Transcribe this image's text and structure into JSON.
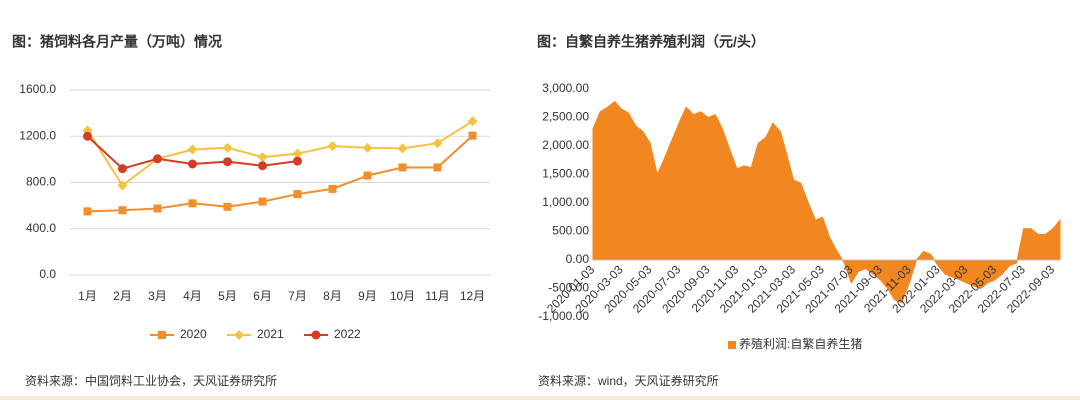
{
  "chart_data": [
    {
      "type": "line",
      "title": "图：猪饲料各月产量（万吨）情况",
      "source": "资料来源：中国饲料工业协会，天风证券研究所",
      "categories": [
        "1月",
        "2月",
        "3月",
        "4月",
        "5月",
        "6月",
        "7月",
        "8月",
        "9月",
        "10月",
        "11月",
        "12月"
      ],
      "series": [
        {
          "name": "2020",
          "color": "#f28e2b",
          "marker": "square",
          "values": [
            550,
            560,
            575,
            620,
            590,
            635,
            700,
            745,
            860,
            930,
            930,
            1205
          ]
        },
        {
          "name": "2021",
          "color": "#f5c242",
          "marker": "diamond",
          "values": [
            1250,
            775,
            1005,
            1085,
            1100,
            1020,
            1050,
            1115,
            1100,
            1095,
            1140,
            1330
          ]
        },
        {
          "name": "2022",
          "color": "#d63b25",
          "marker": "circle",
          "values": [
            1200,
            920,
            1005,
            960,
            980,
            945,
            985,
            null,
            null,
            null,
            null,
            null
          ]
        }
      ],
      "ylim": [
        0,
        1600
      ],
      "yticks": [
        {
          "value": 0,
          "label": "0.0"
        },
        {
          "value": 400,
          "label": "400.0"
        },
        {
          "value": 800,
          "label": "800.0"
        },
        {
          "value": 1200,
          "label": "1200.0"
        },
        {
          "value": 1600,
          "label": "1600.0"
        }
      ],
      "grid": true,
      "legend": "bottom"
    },
    {
      "type": "area",
      "title": "图：自繁自养生猪养殖利润（元/头）",
      "source": "资料来源：wind，天风证券研究所",
      "series": [
        {
          "name": "养殖利润:自繁自养生猪",
          "color": "#f28722",
          "x": [
            "2020-01-03",
            "2020-01-18",
            "2020-02-03",
            "2020-02-18",
            "2020-03-03",
            "2020-03-18",
            "2020-04-03",
            "2020-04-18",
            "2020-05-03",
            "2020-05-18",
            "2020-06-03",
            "2020-06-18",
            "2020-07-03",
            "2020-07-18",
            "2020-08-03",
            "2020-08-18",
            "2020-09-03",
            "2020-09-18",
            "2020-10-03",
            "2020-10-18",
            "2020-11-03",
            "2020-11-18",
            "2020-12-03",
            "2020-12-18",
            "2021-01-03",
            "2021-01-18",
            "2021-02-03",
            "2021-02-18",
            "2021-03-03",
            "2021-03-18",
            "2021-04-03",
            "2021-04-18",
            "2021-05-03",
            "2021-05-18",
            "2021-06-03",
            "2021-06-18",
            "2021-07-03",
            "2021-07-18",
            "2021-08-03",
            "2021-08-18",
            "2021-09-03",
            "2021-09-18",
            "2021-10-03",
            "2021-10-18",
            "2021-11-03",
            "2021-11-18",
            "2021-12-03",
            "2021-12-18",
            "2022-01-03",
            "2022-01-18",
            "2022-02-03",
            "2022-02-18",
            "2022-03-03",
            "2022-03-18",
            "2022-04-03",
            "2022-04-18",
            "2022-05-03",
            "2022-05-18",
            "2022-06-03",
            "2022-06-18",
            "2022-07-03",
            "2022-07-18",
            "2022-08-03",
            "2022-08-18",
            "2022-09-03",
            "2022-09-18"
          ],
          "values": [
            2300,
            2600,
            2680,
            2780,
            2650,
            2580,
            2350,
            2250,
            2050,
            1500,
            1800,
            2100,
            2400,
            2680,
            2550,
            2600,
            2500,
            2550,
            2300,
            1950,
            1600,
            1650,
            1620,
            2050,
            2150,
            2400,
            2250,
            1800,
            1400,
            1350,
            1000,
            700,
            750,
            400,
            150,
            -50,
            -400,
            -200,
            -150,
            -250,
            -350,
            -500,
            -700,
            -750,
            -400,
            0,
            150,
            100,
            -100,
            -250,
            -300,
            -350,
            -400,
            -450,
            -500,
            -400,
            -350,
            -250,
            -100,
            -50,
            550,
            550,
            450,
            450,
            550,
            700
          ]
        }
      ],
      "xlim": [
        "2020-01-03",
        "2022-09-18"
      ],
      "xticks": [
        "2020-01-03",
        "2020-03-03",
        "2020-05-03",
        "2020-07-03",
        "2020-09-03",
        "2020-11-03",
        "2021-01-03",
        "2021-03-03",
        "2021-05-03",
        "2021-07-03",
        "2021-09-03",
        "2021-11-03",
        "2022-01-03",
        "2022-03-03",
        "2022-05-03",
        "2022-07-03",
        "2022-09-03"
      ],
      "ylim": [
        -1000,
        3000
      ],
      "yticks": [
        {
          "value": -1000,
          "label": "-1,000.00"
        },
        {
          "value": -500,
          "label": "-500.00"
        },
        {
          "value": 0,
          "label": "0.00"
        },
        {
          "value": 500,
          "label": "500.00"
        },
        {
          "value": 1000,
          "label": "1,000.00"
        },
        {
          "value": 1500,
          "label": "1,500.00"
        },
        {
          "value": 2000,
          "label": "2,000.00"
        },
        {
          "value": 2500,
          "label": "2,500.00"
        },
        {
          "value": 3000,
          "label": "3,000.00"
        }
      ],
      "grid": false,
      "legend": "bottom"
    }
  ]
}
